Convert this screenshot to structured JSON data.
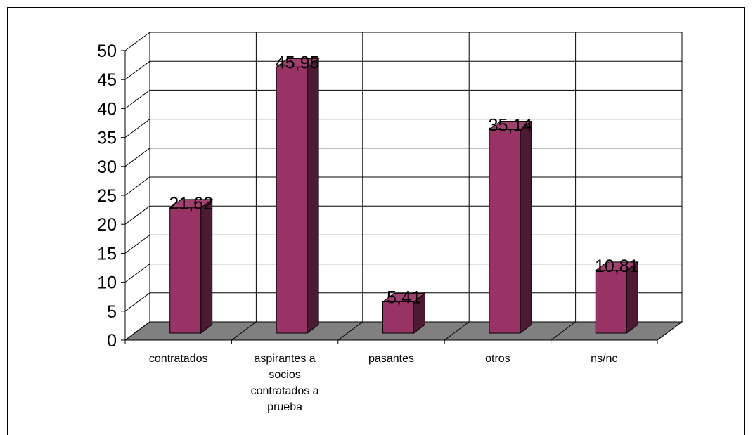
{
  "chart_data": {
    "type": "bar",
    "categories": [
      [
        "contratados"
      ],
      [
        "aspirantes a",
        "socios",
        "contratados a",
        "prueba"
      ],
      [
        "pasantes"
      ],
      [
        "otros"
      ],
      [
        "ns/nc"
      ]
    ],
    "values": [
      21.62,
      45.95,
      5.41,
      35.14,
      10.81
    ],
    "value_labels": [
      "21,62",
      "45,95",
      "5,41",
      "35,14",
      "10,81"
    ],
    "ylim": [
      0,
      50
    ],
    "yticks": [
      0,
      5,
      10,
      15,
      20,
      25,
      30,
      35,
      40,
      45,
      50
    ],
    "grid": true,
    "three_d": true,
    "colors": {
      "bar_front": "#993366",
      "bar_side": "#4d1a33",
      "bar_top": "#a04070",
      "floor": "#808080",
      "grid": "#000000"
    }
  }
}
